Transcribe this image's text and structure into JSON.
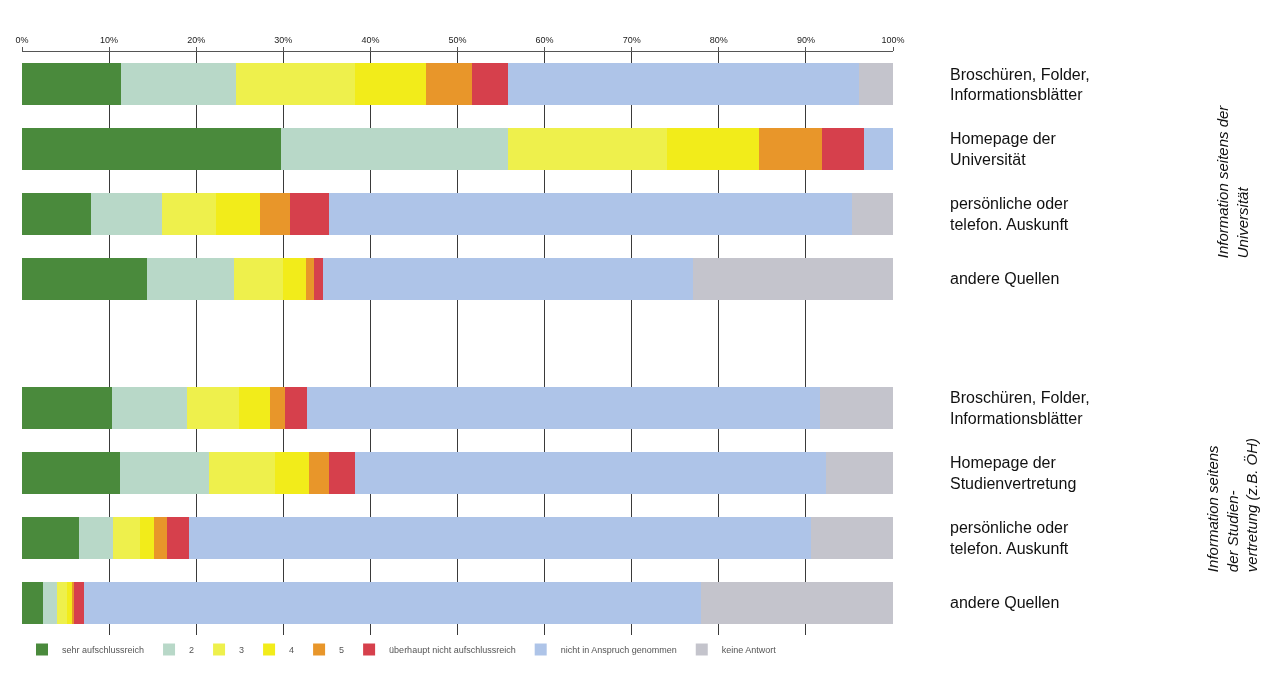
{
  "chart_data": {
    "type": "bar",
    "orientation": "horizontal",
    "stacked": true,
    "categories": [
      "Broschüren, Folder,\nInformationsblätter",
      "Homepage der\nUniversität",
      "persönliche oder\ntelefon. Auskunft",
      "andere Quellen",
      null,
      "Broschüren, Folder,\nInformationsblätter",
      "Homepage der\nStudienvertretung",
      "persönliche oder\ntelefon. Auskunft",
      "andere Quellen"
    ],
    "xlim": [
      0,
      100
    ],
    "xticks": [
      {
        "value": 0,
        "label": "0%"
      },
      {
        "value": 10,
        "label": "10%"
      },
      {
        "value": 20,
        "label": "20%"
      },
      {
        "value": 30,
        "label": "30%"
      },
      {
        "value": 40,
        "label": "40%"
      },
      {
        "value": 50,
        "label": "50%"
      },
      {
        "value": 60,
        "label": "60%"
      },
      {
        "value": 70,
        "label": "70%"
      },
      {
        "value": 80,
        "label": "80%"
      },
      {
        "value": 90,
        "label": "90%"
      },
      {
        "value": 100,
        "label": "100%"
      }
    ],
    "grid": "x",
    "legend": "bottom",
    "annotations": [
      "Information seitens der\nUniversität",
      "Information seitens\nder Studien-\nvertretung (z.B. ÖH)"
    ],
    "series": [
      {
        "name": "sehr aufschlussreich",
        "color": "#4a8a3c",
        "values": [
          11.4,
          29.7,
          7.9,
          14.4,
          null,
          10.3,
          11.2,
          6.5,
          2.4
        ]
      },
      {
        "name": "2",
        "color": "#b8d8c8",
        "values": [
          13.2,
          26.1,
          8.2,
          9.9,
          null,
          8.6,
          10.3,
          4.0,
          1.6
        ]
      },
      {
        "name": "3",
        "color": "#eef04c",
        "values": [
          13.6,
          18.2,
          6.2,
          5.7,
          null,
          6.0,
          7.5,
          3.1,
          1.2
        ]
      },
      {
        "name": "4",
        "color": "#f2ec1a",
        "values": [
          8.2,
          10.6,
          5.0,
          2.6,
          null,
          3.6,
          4.0,
          1.6,
          0.5
        ]
      },
      {
        "name": "5",
        "color": "#e8962a",
        "values": [
          5.3,
          7.2,
          3.5,
          0.9,
          null,
          1.7,
          2.3,
          1.4,
          0.3
        ]
      },
      {
        "name": "überhaupt nicht aufschlussreich",
        "color": "#d6404c",
        "values": [
          4.1,
          4.9,
          4.5,
          1.1,
          null,
          2.5,
          2.9,
          2.6,
          1.1
        ]
      },
      {
        "name": "nicht in Anspruch genommen",
        "color": "#aec4e8",
        "values": [
          40.3,
          3.3,
          60.0,
          42.4,
          null,
          58.9,
          54.1,
          71.4,
          70.8
        ]
      },
      {
        "name": "keine Antwort",
        "color": "#c4c4cc",
        "values": [
          3.9,
          null,
          4.7,
          23.0,
          null,
          8.4,
          7.7,
          9.4,
          22.1
        ]
      }
    ]
  }
}
